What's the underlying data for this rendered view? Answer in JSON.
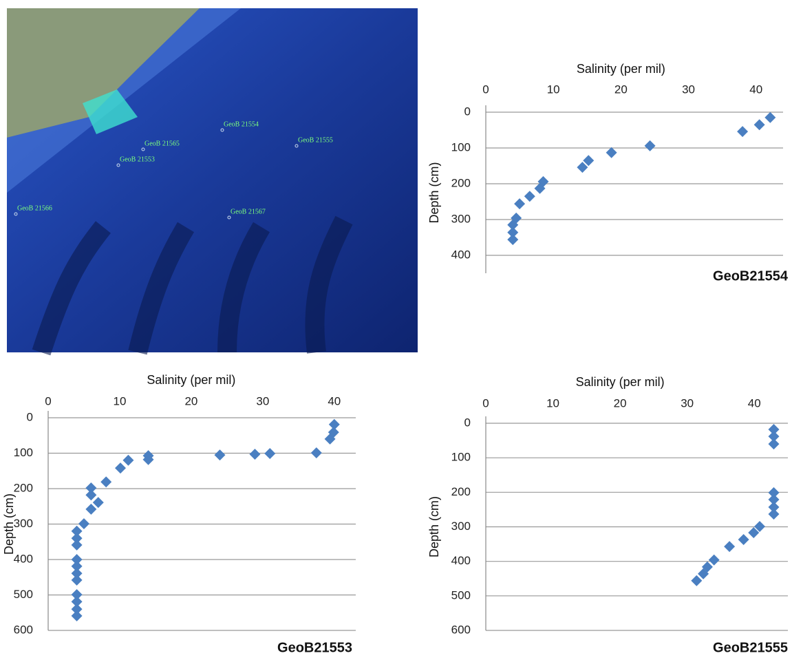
{
  "map": {
    "labels": [
      "GeoB 21554",
      "GeoB 21555",
      "GeoB 21565",
      "GeoB 21553",
      "GeoB 21566",
      "GeoB 21567"
    ]
  },
  "chart_data": [
    {
      "type": "scatter",
      "title": "GeoB21554",
      "x_label": "Salinity (per mil)",
      "y_label": "Depth (cm)",
      "color": "#4a7fc1",
      "x": [
        42.1,
        40.5,
        38,
        24.3,
        18.6,
        15.2,
        14.3,
        8.5,
        8,
        6.5,
        5,
        4.5,
        4,
        4,
        4
      ],
      "values": [
        15,
        35,
        54,
        94,
        113,
        135,
        154,
        194,
        213,
        235,
        256,
        296,
        315,
        336,
        356
      ],
      "xlim": [
        0,
        44
      ],
      "ylim": [
        0,
        450
      ],
      "xticks": [
        0,
        10,
        20,
        30,
        40
      ],
      "yticks": [
        0,
        100,
        200,
        300,
        400
      ],
      "grid": true
    },
    {
      "type": "scatter",
      "title": "GeoB21553",
      "x_label": "Salinity (per mil)",
      "y_label": "Depth (cm)",
      "color": "#4a7fc1",
      "x": [
        40,
        39.9,
        39.4,
        37.5,
        31,
        28.9,
        24,
        14,
        14,
        11.2,
        10.1,
        8.1,
        6,
        6,
        7,
        6,
        5,
        4,
        4,
        4,
        4,
        4,
        4,
        4,
        4,
        4,
        4,
        4
      ],
      "values": [
        19,
        41,
        60,
        99,
        101,
        103,
        105,
        107,
        118,
        120,
        142,
        181,
        198,
        218,
        239,
        258,
        299,
        320,
        340,
        359,
        400,
        419,
        439,
        458,
        499,
        519,
        540,
        559
      ],
      "xlim": [
        0,
        43
      ],
      "ylim": [
        0,
        600
      ],
      "xticks": [
        0,
        10,
        20,
        30,
        40
      ],
      "yticks": [
        0,
        100,
        200,
        300,
        400,
        500,
        600
      ],
      "grid": true
    },
    {
      "type": "scatter",
      "title": "GeoB21555",
      "x_label": "Salinity (per mil)",
      "y_label": "Depth (cm)",
      "color": "#4a7fc1",
      "x": [
        42.9,
        42.9,
        42.9,
        42.9,
        42.9,
        42.9,
        42.9,
        40.8,
        39.9,
        38.4,
        36.3,
        34,
        33,
        32.4,
        31.4
      ],
      "values": [
        18,
        38,
        60,
        201,
        221,
        243,
        263,
        299,
        317,
        337,
        357,
        396,
        416,
        436,
        456
      ],
      "xlim": [
        0,
        45
      ],
      "ylim": [
        0,
        600
      ],
      "xticks": [
        0,
        10,
        20,
        30,
        40
      ],
      "yticks": [
        0,
        100,
        200,
        300,
        400,
        500,
        600
      ],
      "grid": true
    }
  ]
}
